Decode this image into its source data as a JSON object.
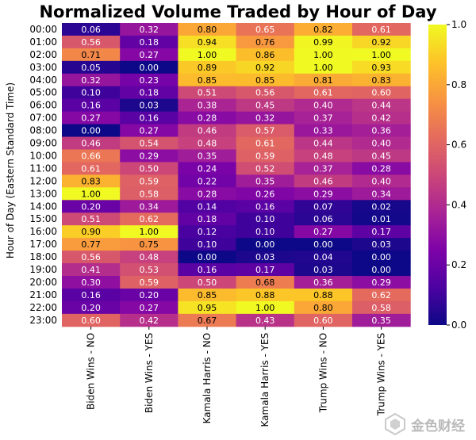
{
  "chart_data": {
    "type": "heatmap",
    "title": "Normalized Volume Traded by Hour of Day",
    "ylabel": "Hour of Day (Eastern Standard Time)",
    "xlabel": "",
    "columns": [
      "Biden Wins - NO",
      "Biden Wins - YES",
      "Kamala Harris - NO",
      "Kamala Harris - YES",
      "Trump Wins - NO",
      "Trump Wins - YES"
    ],
    "rows": [
      "00:00",
      "01:00",
      "02:00",
      "03:00",
      "04:00",
      "05:00",
      "06:00",
      "07:00",
      "08:00",
      "09:00",
      "10:00",
      "11:00",
      "12:00",
      "13:00",
      "14:00",
      "15:00",
      "16:00",
      "17:00",
      "18:00",
      "19:00",
      "20:00",
      "21:00",
      "22:00",
      "23:00"
    ],
    "values": [
      [
        0.06,
        0.32,
        0.8,
        0.65,
        0.82,
        0.61
      ],
      [
        0.56,
        0.18,
        0.94,
        0.76,
        0.99,
        0.92
      ],
      [
        0.71,
        0.27,
        1.0,
        0.86,
        1.0,
        1.0
      ],
      [
        0.05,
        0.0,
        0.89,
        0.92,
        1.0,
        0.93
      ],
      [
        0.32,
        0.23,
        0.85,
        0.85,
        0.81,
        0.83
      ],
      [
        0.1,
        0.18,
        0.51,
        0.56,
        0.61,
        0.6
      ],
      [
        0.16,
        0.03,
        0.38,
        0.45,
        0.4,
        0.44
      ],
      [
        0.27,
        0.16,
        0.28,
        0.32,
        0.37,
        0.42
      ],
      [
        0.0,
        0.27,
        0.46,
        0.57,
        0.33,
        0.36
      ],
      [
        0.46,
        0.54,
        0.48,
        0.61,
        0.44,
        0.4
      ],
      [
        0.66,
        0.29,
        0.35,
        0.59,
        0.48,
        0.45
      ],
      [
        0.61,
        0.5,
        0.24,
        0.52,
        0.37,
        0.28
      ],
      [
        0.83,
        0.59,
        0.22,
        0.35,
        0.46,
        0.4
      ],
      [
        1.0,
        0.58,
        0.28,
        0.26,
        0.29,
        0.34
      ],
      [
        0.2,
        0.34,
        0.14,
        0.16,
        0.07,
        0.02
      ],
      [
        0.51,
        0.62,
        0.18,
        0.1,
        0.06,
        0.01
      ],
      [
        0.9,
        1.0,
        0.12,
        0.1,
        0.27,
        0.17
      ],
      [
        0.77,
        0.75,
        0.1,
        0.0,
        0.0,
        0.03
      ],
      [
        0.56,
        0.48,
        0.0,
        0.03,
        0.04,
        0.0
      ],
      [
        0.41,
        0.53,
        0.16,
        0.17,
        0.03,
        0.0
      ],
      [
        0.3,
        0.59,
        0.5,
        0.68,
        0.36,
        0.29
      ],
      [
        0.16,
        0.2,
        0.85,
        0.88,
        0.88,
        0.62
      ],
      [
        0.2,
        0.27,
        0.95,
        1.0,
        0.8,
        0.58
      ],
      [
        0.6,
        0.42,
        0.67,
        0.43,
        0.6,
        0.35
      ]
    ],
    "colormap": "plasma",
    "color_range": [
      0.0,
      1.0
    ],
    "colorbar_ticks": [
      "0.0",
      "0.2",
      "0.4",
      "0.6",
      "0.8",
      "1.0"
    ],
    "legend": "colorbar-right",
    "grid": false
  },
  "watermark": {
    "text": "金色财经",
    "icon": "jinse-logo-icon"
  }
}
